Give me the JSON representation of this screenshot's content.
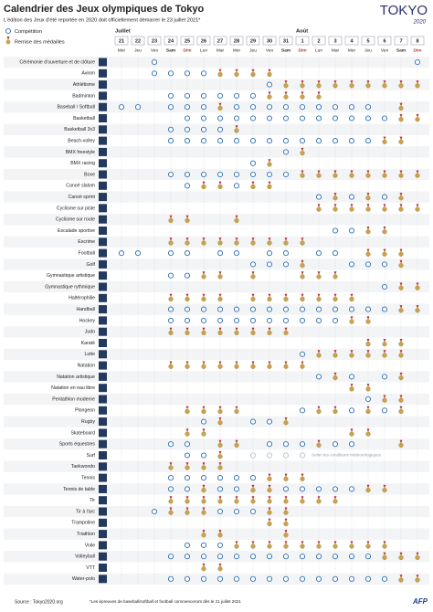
{
  "header": {
    "title": "Calendrier des Jeux olympiques de Tokyo",
    "subtitle": "L'édition des Jeux d'été reportée en 2020 doit officiellement démarrer le 23 juillet 2021*",
    "logo": "TOKYO",
    "logo_year": "2020"
  },
  "legend": {
    "competition": "Compétition",
    "medal": "Remise des médailles"
  },
  "months": [
    {
      "label": "Juillet",
      "start": 0
    },
    {
      "label": "Août",
      "start": 11
    }
  ],
  "days": [
    "21",
    "22",
    "23",
    "24",
    "25",
    "26",
    "27",
    "28",
    "29",
    "30",
    "31",
    "1",
    "2",
    "3",
    "4",
    "5",
    "6",
    "7",
    "8"
  ],
  "weekdays": [
    "Mer",
    "Jeu",
    "Ven",
    "Sam",
    "Dim",
    "Lun",
    "Mar",
    "Mer",
    "Jeu",
    "Ven",
    "Sam",
    "Dim",
    "Lun",
    "Mar",
    "Mer",
    "Jeu",
    "Ven",
    "Sam",
    "Dim"
  ],
  "rows": [
    {
      "sport": "Cérémonie d'ouverture et de clôture",
      "schedule": "..C...............C"
    },
    {
      "sport": "Aviron",
      "schedule": "..CCCCMMMM........."
    },
    {
      "sport": "Athlétisme",
      "schedule": ".........CMMMMMMMMM"
    },
    {
      "sport": "Badminton",
      "schedule": "...CCCCCCMMMM......"
    },
    {
      "sport": "Baseball / Softball",
      "schedule": "CC.CCCMCCCCCCCCC.M."
    },
    {
      "sport": "Basketball",
      "schedule": "....CCCCCCCCCCCCCMM"
    },
    {
      "sport": "Basketball 3x3",
      "schedule": "...CCCCM..........."
    },
    {
      "sport": "Beach-volley",
      "schedule": "...CCCCCCCCCCCCCMM."
    },
    {
      "sport": "BMX freestyle",
      "schedule": "..........CM......."
    },
    {
      "sport": "BMX racing",
      "schedule": "........CM........."
    },
    {
      "sport": "Boxe",
      "schedule": "...CCCCCCCCMMMMMMMM"
    },
    {
      "sport": "Canoë slalom",
      "schedule": "....CMMCMM........."
    },
    {
      "sport": "Canoë sprint",
      "schedule": "............CMCMCM."
    },
    {
      "sport": "Cyclisme sur piste",
      "schedule": "............MMMMMMM"
    },
    {
      "sport": "Cyclisme sur route",
      "schedule": "...MM..M..........."
    },
    {
      "sport": "Escalade sportive",
      "schedule": ".............CCMM.."
    },
    {
      "sport": "Escrime",
      "schedule": "...MMMMMMMMM......."
    },
    {
      "sport": "Football",
      "schedule": "CC.CC.CC.CC.CC.MMM."
    },
    {
      "sport": "Golf",
      "schedule": "........CCCM..CCCM."
    },
    {
      "sport": "Gymnastique artistique",
      "schedule": "...CCMM.M..MMM....."
    },
    {
      "sport": "Gymnastique rythmique",
      "schedule": "................CMM"
    },
    {
      "sport": "Haltérophilie",
      "schedule": "...MMMM.MMMMMMM...."
    },
    {
      "sport": "Handball",
      "schedule": "...CCCCCCCCCCCCCCMM"
    },
    {
      "sport": "Hockey",
      "schedule": "...CCCCCCCCCCCMM..."
    },
    {
      "sport": "Judo",
      "schedule": "...MMMMMMMM........"
    },
    {
      "sport": "Karaté",
      "schedule": "...............MMM."
    },
    {
      "sport": "Lutte",
      "schedule": "...........CMMMMMM."
    },
    {
      "sport": "Natation",
      "schedule": "...MMMMMMMMM......."
    },
    {
      "sport": "Natation artistique",
      "schedule": "............CMC.CM."
    },
    {
      "sport": "Natation en eau libre",
      "schedule": "..............MM..."
    },
    {
      "sport": "Pentathlon moderne",
      "schedule": "...............CMM."
    },
    {
      "sport": "Plongeon",
      "schedule": "....MMMM...CMMCMCM."
    },
    {
      "sport": "Rugby",
      "schedule": ".....CM.CCM........"
    },
    {
      "sport": "Skateboard",
      "schedule": "....MM........MM..."
    },
    {
      "sport": "Sports équestres",
      "schedule": "...CC.MM.CCCMCC..M."
    },
    {
      "sport": "Surf",
      "schedule": "....CCM.GGGG.......",
      "note": "Selon les conditions météorologiques"
    },
    {
      "sport": "Taekwondo",
      "schedule": "...MMMM............"
    },
    {
      "sport": "Tennis",
      "schedule": "...CCCCCCMMM......."
    },
    {
      "sport": "Tennis de table",
      "schedule": "...CCMCCMMCCCCCMM.."
    },
    {
      "sport": "Tir",
      "schedule": "...MMMMMMMMMMM....."
    },
    {
      "sport": "Tir à l'arc",
      "schedule": "..CMMMCCCMM........"
    },
    {
      "sport": "Trampoline",
      "schedule": ".........MM........"
    },
    {
      "sport": "Triathlon",
      "schedule": ".....MM...M........"
    },
    {
      "sport": "Voile",
      "schedule": "....CCCMMMMMMMMMM.."
    },
    {
      "sport": "Volleyball",
      "schedule": "...CCCCCCCCCCCCCMMM"
    },
    {
      "sport": "VTT",
      "schedule": ".....MM............"
    },
    {
      "sport": "Water-polo",
      "schedule": "...CCCCCCCCCCCCCCMM"
    }
  ],
  "footer": {
    "source": "Source : Tokyo2020.org",
    "note": "*Les épreuves de baseball/softball et football commenceront dès le 21 juillet 2021",
    "agency": "AFP"
  }
}
